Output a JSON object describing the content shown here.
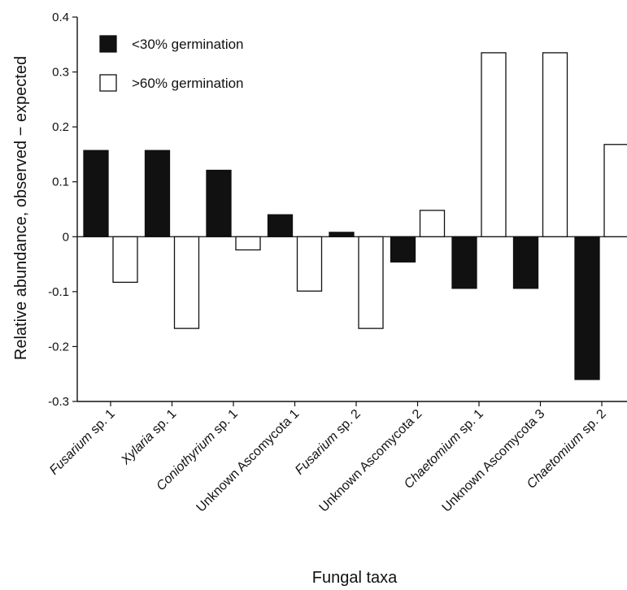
{
  "chart_data": {
    "type": "bar",
    "xlabel": "Fungal taxa",
    "ylabel": "Relative abundance, observed − expected",
    "ylim": [
      -0.3,
      0.4
    ],
    "yticks": [
      "0.4",
      "0.3",
      "0.2",
      "0.1",
      "0",
      "-0.1",
      "-0.2",
      "-0.3"
    ],
    "grid": false,
    "legend_position": "top-left",
    "categories": [
      {
        "italic": "Fusarium",
        "rest": " sp. 1"
      },
      {
        "italic": "Xylaria",
        "rest": " sp. 1"
      },
      {
        "italic": "Coniothyrium",
        "rest": " sp. 1"
      },
      {
        "italic": "",
        "rest": "Unknown Ascomycota 1"
      },
      {
        "italic": "Fusarium",
        "rest": " sp. 2"
      },
      {
        "italic": "",
        "rest": "Unknown Ascomycota 2"
      },
      {
        "italic": "Chaetomium",
        "rest": " sp. 1"
      },
      {
        "italic": "",
        "rest": "Unknown Ascomycota 3"
      },
      {
        "italic": "Chaetomium",
        "rest": " sp. 2"
      }
    ],
    "series": [
      {
        "name": "<30% germination",
        "color": "#111111",
        "values": [
          0.157,
          0.157,
          0.121,
          0.04,
          0.008,
          -0.046,
          -0.094,
          -0.094,
          -0.26
        ]
      },
      {
        "name": ">60% germination",
        "color": "#ffffff",
        "values": [
          -0.083,
          -0.167,
          -0.024,
          -0.099,
          -0.167,
          0.048,
          0.335,
          0.335,
          0.168
        ]
      }
    ]
  }
}
